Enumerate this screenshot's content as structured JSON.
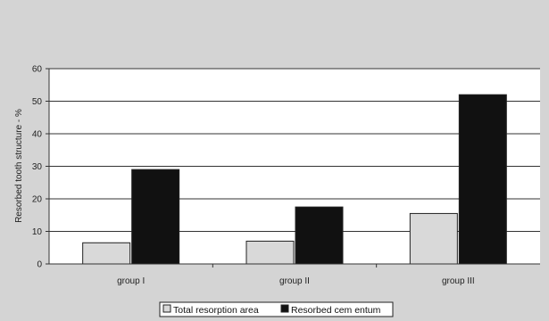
{
  "chart_data": {
    "type": "bar",
    "categories": [
      "group I",
      "group II",
      "group III"
    ],
    "series": [
      {
        "name": "Total resorption area",
        "values": [
          6.5,
          7,
          15.5
        ],
        "color": "#d9d9d9"
      },
      {
        "name": "Resorbed cem entum",
        "values": [
          29,
          17.5,
          52
        ],
        "color": "#111111"
      }
    ],
    "xlabel": "",
    "ylabel": "Resorbed tooth structure - %",
    "ylim": [
      0,
      60
    ],
    "yticks": [
      0,
      10,
      20,
      30,
      40,
      50,
      60
    ],
    "grid": true,
    "legend_position": "bottom-center",
    "plot_background": "#ffffff",
    "page_background": "#d4d4d4"
  }
}
